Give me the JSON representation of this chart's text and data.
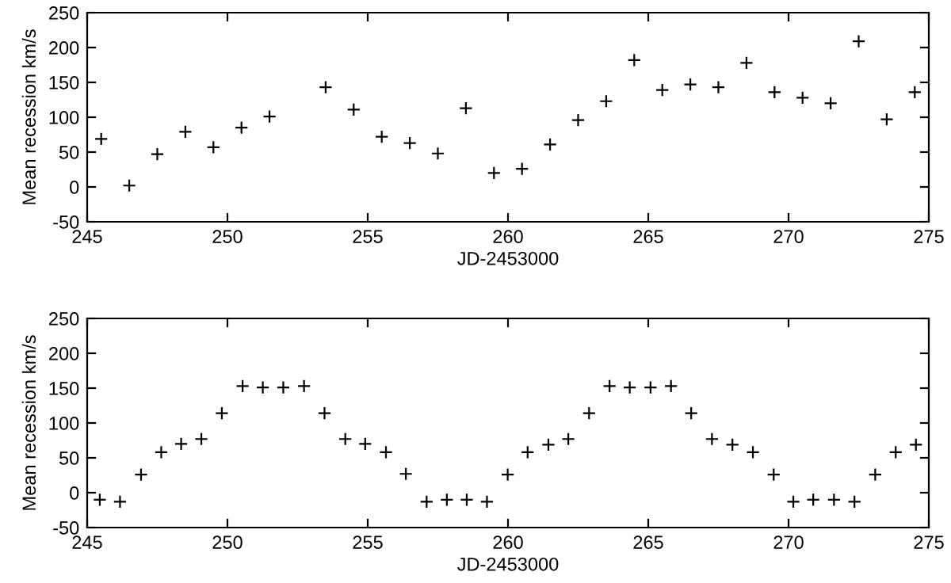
{
  "chart_data": [
    {
      "type": "scatter",
      "xlabel": "JD-2453000",
      "ylabel": "Mean recession km/s",
      "xlim": [
        245,
        275
      ],
      "xticks": [
        245,
        250,
        255,
        260,
        265,
        270,
        275
      ],
      "ylim": [
        -50,
        250
      ],
      "yticks": [
        -50,
        0,
        50,
        100,
        150,
        200,
        250
      ],
      "marker": "cross",
      "grid": false,
      "legend": false,
      "series": [
        {
          "color": "#000000",
          "x": [
            245.5,
            246.5,
            247.5,
            248.5,
            249.5,
            250.5,
            251.5,
            253.5,
            254.5,
            255.5,
            256.5,
            257.5,
            258.5,
            259.5,
            260.5,
            261.5,
            262.5,
            263.5,
            264.5,
            265.5,
            266.5,
            267.5,
            268.5,
            269.5,
            270.5,
            271.5,
            272.5,
            273.5,
            274.5
          ],
          "values": [
            69,
            2,
            47,
            79,
            57,
            85,
            101,
            143,
            111,
            72,
            63,
            48,
            113,
            20,
            26,
            61,
            96,
            123,
            182,
            139,
            147,
            143,
            178,
            136,
            128,
            120,
            209,
            97,
            136
          ]
        }
      ]
    },
    {
      "type": "scatter",
      "xlabel": "JD-2453000",
      "ylabel": "Mean recession km/s",
      "xlim": [
        245,
        275
      ],
      "xticks": [
        245,
        250,
        255,
        260,
        265,
        270,
        275
      ],
      "ylim": [
        -50,
        250
      ],
      "yticks": [
        -50,
        0,
        50,
        100,
        150,
        200,
        250
      ],
      "marker": "cross",
      "grid": false,
      "legend": false,
      "series": [
        {
          "color": "#000000",
          "x": [
            245.45,
            246.17,
            246.92,
            247.64,
            248.35,
            249.07,
            249.8,
            250.54,
            251.26,
            251.99,
            252.73,
            253.46,
            254.2,
            254.91,
            255.65,
            256.36,
            257.1,
            257.82,
            258.53,
            259.25,
            259.99,
            260.7,
            261.44,
            262.15,
            262.89,
            263.62,
            264.34,
            265.08,
            265.81,
            266.53,
            267.27,
            268.0,
            268.73,
            269.47,
            270.17,
            270.88,
            271.62,
            272.35,
            273.09,
            273.82,
            274.54
          ],
          "values": [
            -10,
            -13,
            26,
            58,
            70,
            77,
            114,
            153,
            151,
            151,
            153,
            114,
            77,
            70,
            58,
            27,
            -13,
            -10,
            -10,
            -13,
            26,
            58,
            69,
            77,
            114,
            153,
            151,
            151,
            153,
            114,
            77,
            69,
            58,
            26,
            -13,
            -10,
            -10,
            -13,
            26,
            58,
            69
          ]
        }
      ]
    }
  ]
}
